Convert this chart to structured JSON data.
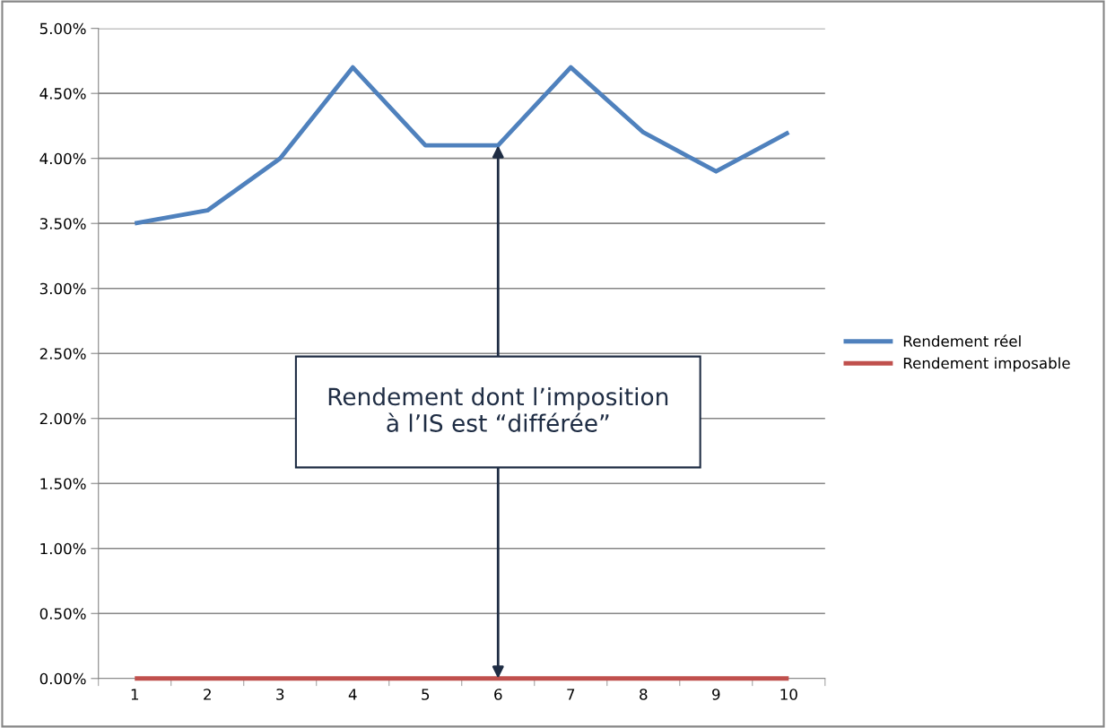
{
  "chart_data": {
    "type": "line",
    "categories": [
      "1",
      "2",
      "3",
      "4",
      "5",
      "6",
      "7",
      "8",
      "9",
      "10"
    ],
    "series": [
      {
        "name": "Rendement réel",
        "color": "#4f81bd",
        "values": [
          3.5,
          3.6,
          4.0,
          4.7,
          4.1,
          4.1,
          4.7,
          4.2,
          3.9,
          4.2
        ]
      },
      {
        "name": "Rendement imposable",
        "color": "#c0504d",
        "values": [
          0,
          0,
          0,
          0,
          0,
          0,
          0,
          0,
          0,
          0
        ]
      }
    ],
    "ylim": [
      0,
      5
    ],
    "yticks": [
      {
        "value": 0,
        "label": "0.00%"
      },
      {
        "value": 0.5,
        "label": "0.50%"
      },
      {
        "value": 1,
        "label": "1.00%"
      },
      {
        "value": 1.5,
        "label": "1.50%"
      },
      {
        "value": 2,
        "label": "2.00%"
      },
      {
        "value": 2.5,
        "label": "2.50%"
      },
      {
        "value": 3,
        "label": "3.00%"
      },
      {
        "value": 3.5,
        "label": "3.50%"
      },
      {
        "value": 4,
        "label": "4.00%"
      },
      {
        "value": 4.5,
        "label": "4.50%"
      },
      {
        "value": 5,
        "label": "5.00%"
      }
    ],
    "grid": "y",
    "legend": "right",
    "marker": "none",
    "line_style": "solid",
    "annotations": [
      {
        "text": "Rendement dont l’imposition\nà l’IS est “différée”",
        "x": "6",
        "y": 4.1
      }
    ]
  }
}
